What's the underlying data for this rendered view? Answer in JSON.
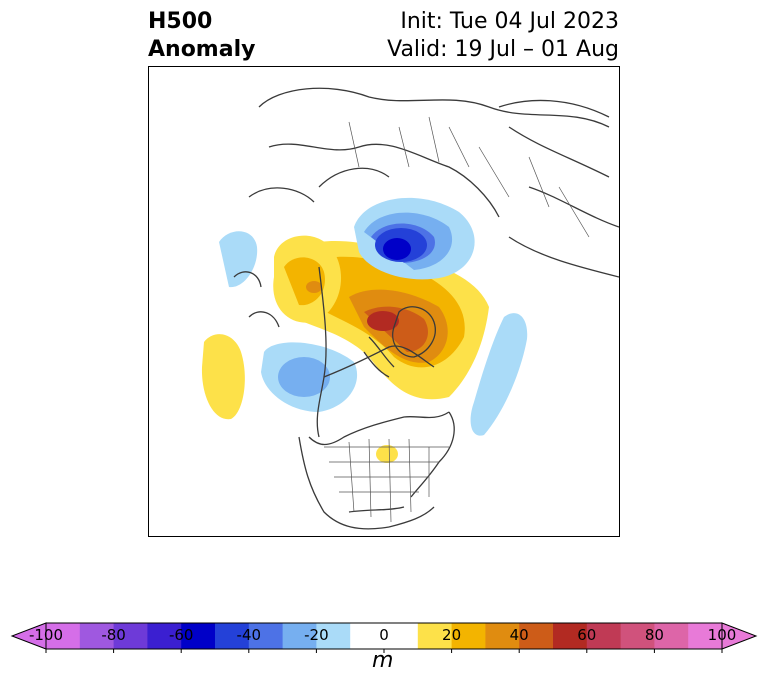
{
  "title": {
    "left_line1": "H500",
    "left_line2": "Anomaly",
    "right_line1": "Init: Tue 04 Jul 2023",
    "right_line2": "Valid: 19 Jul – 01 Aug"
  },
  "colorbar": {
    "unit": "m",
    "ticks": [
      "-100",
      "-80",
      "-60",
      "-40",
      "-20",
      "0",
      "20",
      "40",
      "60",
      "80",
      "100"
    ],
    "colors": [
      "#d56ee8",
      "#9f58e0",
      "#6e3ad8",
      "#3b1fd1",
      "#0000c8",
      "#2441d8",
      "#4d72e6",
      "#76aff0",
      "#aadbf8",
      "#ffffff",
      "#ffffff",
      "#fde149",
      "#f3b400",
      "#e08c10",
      "#cd5c18",
      "#b22a22",
      "#c03a55",
      "#d0527c",
      "#dd65a8",
      "#e87ad8"
    ]
  },
  "map": {
    "features": [
      "positive-anomaly-greenland",
      "negative-anomaly-arctic",
      "positive-anomaly-alaska",
      "negative-anomaly-pacific",
      "negative-anomaly-atlantic",
      "positive-anomaly-midwest"
    ]
  }
}
